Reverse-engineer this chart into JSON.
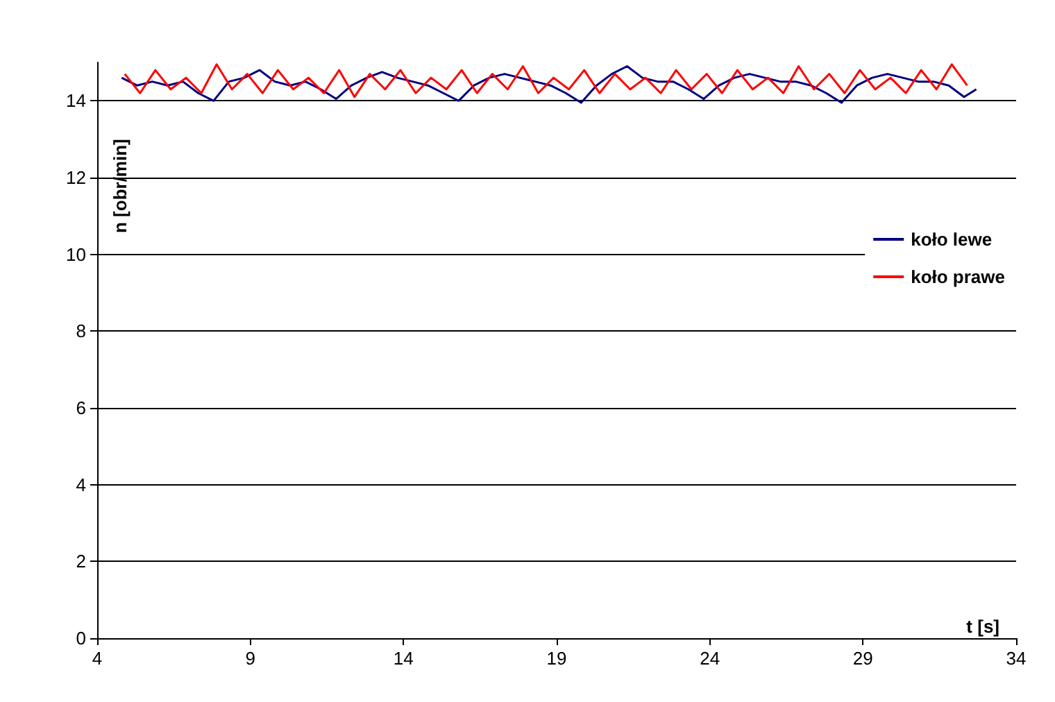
{
  "chart_data": {
    "type": "line",
    "xlabel": "t [s]",
    "ylabel": "n [obr/min]",
    "xlim": [
      4,
      34
    ],
    "xticks": [
      4,
      9,
      14,
      19,
      24,
      29,
      34
    ],
    "ylim": [
      0,
      15
    ],
    "yticks": [
      0,
      2,
      4,
      6,
      8,
      10,
      12,
      14
    ],
    "grid": "y",
    "legend": "right",
    "marker": "none",
    "line_style": "solid",
    "series": [
      {
        "name": "koło lewe",
        "color": "#000080",
        "x": [
          4.8,
          5.3,
          5.8,
          6.3,
          6.8,
          7.3,
          7.8,
          8.3,
          8.8,
          9.3,
          9.8,
          10.3,
          10.8,
          11.3,
          11.8,
          12.3,
          12.8,
          13.3,
          13.8,
          14.3,
          14.8,
          15.3,
          15.8,
          16.3,
          16.8,
          17.3,
          17.8,
          18.3,
          18.8,
          19.3,
          19.8,
          20.3,
          20.8,
          21.3,
          21.8,
          22.3,
          22.8,
          23.3,
          23.8,
          24.3,
          24.8,
          25.3,
          25.8,
          26.3,
          26.8,
          27.3,
          27.8,
          28.3,
          28.8,
          29.3,
          29.8,
          30.3,
          30.8,
          31.3,
          31.8,
          32.3,
          32.7
        ],
        "values": [
          14.6,
          14.4,
          14.5,
          14.4,
          14.5,
          14.2,
          14.0,
          14.5,
          14.6,
          14.8,
          14.5,
          14.4,
          14.5,
          14.3,
          14.05,
          14.4,
          14.6,
          14.75,
          14.6,
          14.5,
          14.4,
          14.2,
          14.0,
          14.4,
          14.6,
          14.7,
          14.6,
          14.5,
          14.4,
          14.2,
          13.95,
          14.4,
          14.7,
          14.9,
          14.6,
          14.5,
          14.5,
          14.3,
          14.05,
          14.4,
          14.6,
          14.7,
          14.6,
          14.5,
          14.5,
          14.4,
          14.2,
          13.95,
          14.4,
          14.6,
          14.7,
          14.6,
          14.5,
          14.5,
          14.4,
          14.1,
          14.3
        ]
      },
      {
        "name": "koło prawe",
        "color": "#ff0000",
        "x": [
          4.9,
          5.4,
          5.9,
          6.4,
          6.9,
          7.4,
          7.9,
          8.4,
          8.9,
          9.4,
          9.9,
          10.4,
          10.9,
          11.4,
          11.9,
          12.4,
          12.9,
          13.4,
          13.9,
          14.4,
          14.9,
          15.4,
          15.9,
          16.4,
          16.9,
          17.4,
          17.9,
          18.4,
          18.9,
          19.4,
          19.9,
          20.4,
          20.9,
          21.4,
          21.9,
          22.4,
          22.9,
          23.4,
          23.9,
          24.4,
          24.9,
          25.4,
          25.9,
          26.4,
          26.9,
          27.4,
          27.9,
          28.4,
          28.9,
          29.4,
          29.9,
          30.4,
          30.9,
          31.4,
          31.9,
          32.4
        ],
        "values": [
          14.7,
          14.2,
          14.8,
          14.3,
          14.6,
          14.2,
          14.95,
          14.3,
          14.7,
          14.2,
          14.8,
          14.3,
          14.6,
          14.2,
          14.8,
          14.1,
          14.7,
          14.3,
          14.8,
          14.2,
          14.6,
          14.3,
          14.8,
          14.2,
          14.7,
          14.3,
          14.9,
          14.2,
          14.6,
          14.3,
          14.8,
          14.2,
          14.7,
          14.3,
          14.6,
          14.2,
          14.8,
          14.3,
          14.7,
          14.2,
          14.8,
          14.3,
          14.6,
          14.2,
          14.9,
          14.3,
          14.7,
          14.2,
          14.8,
          14.3,
          14.6,
          14.2,
          14.8,
          14.3,
          14.95,
          14.4
        ]
      }
    ]
  }
}
